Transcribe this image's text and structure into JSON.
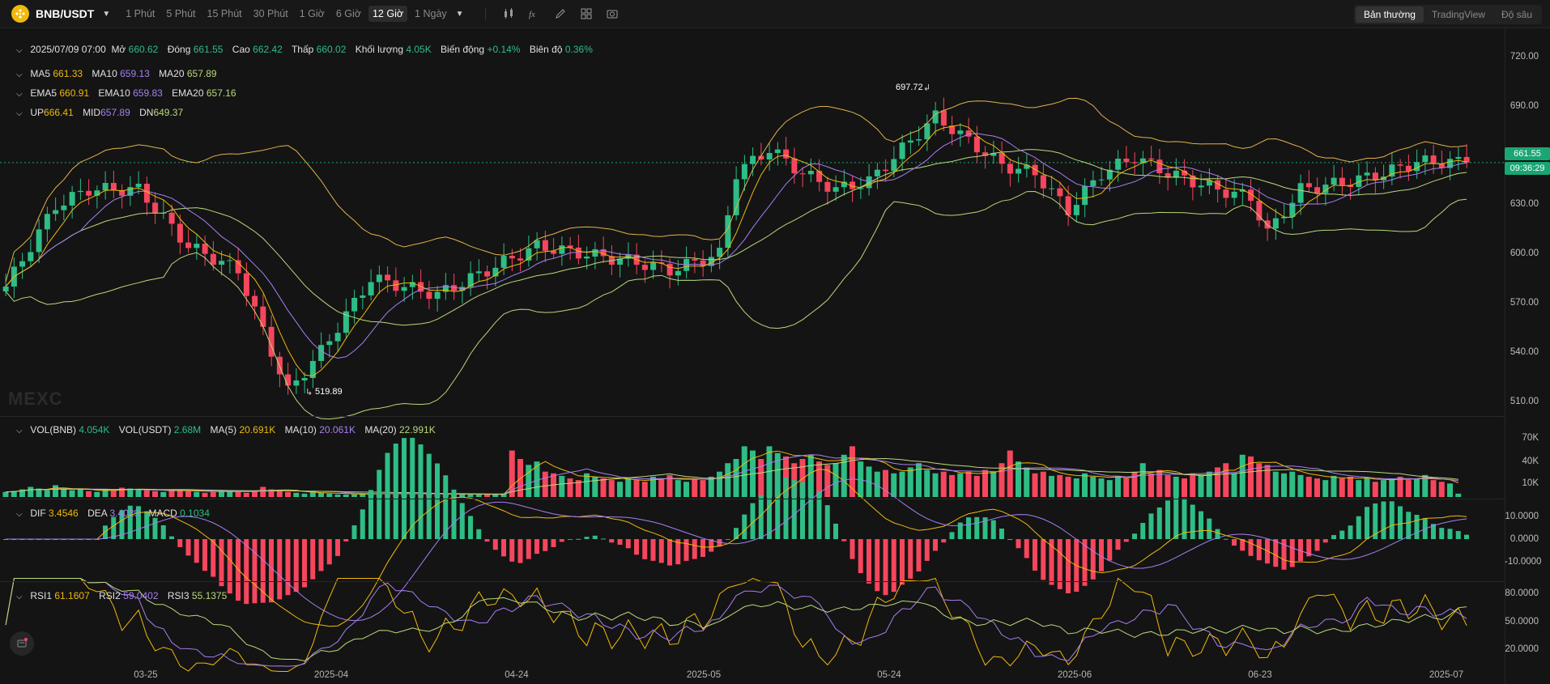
{
  "toolbar": {
    "pair": "BNB/USDT",
    "timeframes": [
      "1 Phút",
      "5 Phút",
      "15 Phút",
      "30 Phút",
      "1 Giờ",
      "6 Giờ",
      "12 Giờ",
      "1 Ngày"
    ],
    "active_timeframe": "12 Giờ",
    "views": [
      "Bản thường",
      "TradingView",
      "Độ sâu"
    ],
    "active_view": "Bản thường",
    "icons": [
      "candle-type-icon",
      "indicator-icon",
      "draw-icon",
      "layout-icon",
      "screenshot-icon"
    ]
  },
  "ohlc": {
    "date": "2025/07/09 07:00",
    "open_label": "Mở",
    "open": "660.62",
    "close_label": "Đóng",
    "close": "661.55",
    "high_label": "Cao",
    "high": "662.42",
    "low_label": "Thấp",
    "low": "660.02",
    "vol_label": "Khối lượng",
    "vol": "4.05K",
    "chg_label": "Biến động",
    "chg": "+0.14%",
    "amp_label": "Biên độ",
    "amp": "0.36%"
  },
  "ma": {
    "ma5_label": "MA5",
    "ma5": "661.33",
    "ma10_label": "MA10",
    "ma10": "659.13",
    "ma20_label": "MA20",
    "ma20": "657.89"
  },
  "ema": {
    "ema5_label": "EMA5",
    "ema5": "660.91",
    "ema10_label": "EMA10",
    "ema10": "659.83",
    "ema20_label": "EMA20",
    "ema20": "657.16"
  },
  "boll": {
    "up_label": "UP",
    "up": "666.41",
    "mid_label": "MID",
    "mid": "657.89",
    "dn_label": "DN",
    "dn": "649.37"
  },
  "volume": {
    "vbnb_label": "VOL(BNB)",
    "vbnb": "4.054K",
    "vusdt_label": "VOL(USDT)",
    "vusdt": "2.68M",
    "m5_label": "MA(5)",
    "m5": "20.691K",
    "m10_label": "MA(10)",
    "m10": "20.061K",
    "m20_label": "MA(20)",
    "m20": "22.991K"
  },
  "macd": {
    "dif_label": "DIF",
    "dif": "3.4546",
    "dea_label": "DEA",
    "dea": "3.4029",
    "macd_label": "MACD",
    "macd": "0.1034"
  },
  "rsi": {
    "r1_label": "RSI1",
    "r1": "61.1607",
    "r2_label": "RSI2",
    "r2": "59.0402",
    "r3_label": "RSI3",
    "r3": "55.1375"
  },
  "price_axis": [
    "720.00",
    "690.00",
    "660.00",
    "630.00",
    "600.00",
    "570.00",
    "540.00",
    "510.00"
  ],
  "vol_axis": [
    "70K",
    "40K",
    "10K"
  ],
  "macd_axis": [
    "10.0000",
    "0.0000",
    "-10.0000"
  ],
  "rsi_axis": [
    "80.0000",
    "50.0000",
    "20.0000"
  ],
  "last_price": "661.55",
  "countdown": "09:36:29",
  "high_mark": "697.72",
  "low_mark": "519.89",
  "x_labels": [
    "03-25",
    "2025-04",
    "04-24",
    "2025-05",
    "05-24",
    "2025-06",
    "06-23",
    "2025-07"
  ],
  "watermark": "MEXC",
  "colors": {
    "up": "#2ebd85",
    "down": "#f6465d",
    "ma5": "#f0b90b",
    "ma10": "#a77ff2",
    "ma20": "#b9d97a",
    "boll": "#e2b24a"
  },
  "chart_data": {
    "type": "candlestick",
    "x_range": [
      "2025-03-10",
      "2025-07-09"
    ],
    "ylim": [
      505,
      730
    ],
    "anchors": [
      [
        0,
        585
      ],
      [
        6,
        635
      ],
      [
        10,
        645
      ],
      [
        16,
        645
      ],
      [
        22,
        610
      ],
      [
        28,
        595
      ],
      [
        34,
        520
      ],
      [
        38,
        545
      ],
      [
        44,
        590
      ],
      [
        52,
        580
      ],
      [
        58,
        595
      ],
      [
        64,
        610
      ],
      [
        70,
        605
      ],
      [
        76,
        600
      ],
      [
        80,
        595
      ],
      [
        86,
        605
      ],
      [
        88,
        655
      ],
      [
        92,
        670
      ],
      [
        96,
        655
      ],
      [
        100,
        645
      ],
      [
        104,
        650
      ],
      [
        108,
        670
      ],
      [
        112,
        690
      ],
      [
        116,
        675
      ],
      [
        120,
        660
      ],
      [
        124,
        655
      ],
      [
        128,
        632
      ],
      [
        132,
        655
      ],
      [
        136,
        665
      ],
      [
        140,
        655
      ],
      [
        146,
        645
      ],
      [
        150,
        640
      ],
      [
        152,
        618
      ],
      [
        156,
        645
      ],
      [
        162,
        650
      ],
      [
        166,
        655
      ],
      [
        170,
        662
      ],
      [
        174,
        662
      ],
      [
        176,
        661.55
      ]
    ],
    "volume_k": [
      6,
      7,
      9,
      12,
      10,
      8,
      14,
      10,
      8,
      9,
      7,
      6,
      9,
      8,
      11,
      10,
      9,
      8,
      7,
      6,
      8,
      9,
      7,
      6,
      5,
      6,
      8,
      7,
      6,
      5,
      7,
      12,
      9,
      8,
      6,
      5,
      4,
      6,
      5,
      4,
      3,
      3,
      3,
      4,
      5,
      4,
      3,
      4,
      5,
      4,
      3,
      4,
      3,
      4,
      3,
      4,
      3,
      3,
      3,
      3,
      4,
      55,
      45,
      38,
      42,
      30,
      28,
      25,
      22,
      20,
      28,
      24,
      22,
      20,
      18,
      22,
      20,
      18,
      24,
      22,
      26,
      20,
      18,
      22,
      20,
      24,
      30,
      40,
      45,
      60,
      55,
      45,
      60,
      52,
      48,
      40,
      45,
      50,
      42,
      38,
      40,
      50,
      60,
      42,
      36,
      30,
      32,
      28,
      30,
      35,
      40,
      32,
      28,
      30,
      26,
      28,
      30,
      25,
      32,
      30,
      40,
      55,
      42,
      35,
      28,
      30,
      25,
      26,
      24,
      22,
      28,
      24,
      22,
      20,
      25,
      22,
      30,
      40,
      28,
      32,
      26,
      24,
      22,
      28,
      25,
      30,
      35,
      40,
      28,
      50,
      48,
      40,
      38,
      30,
      28,
      30,
      26,
      24,
      22,
      20,
      25,
      22,
      24,
      20,
      22,
      18,
      20,
      22,
      24,
      20,
      22,
      26,
      20,
      18,
      16,
      4
    ],
    "series": []
  }
}
